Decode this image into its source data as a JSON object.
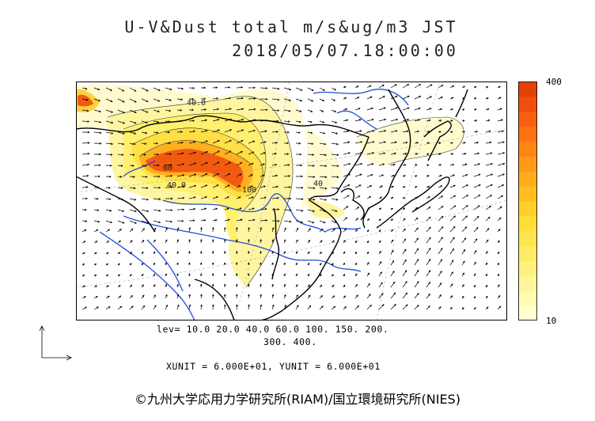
{
  "header": {
    "title_line1": "U-V&Dust total m/s&ug/m3 JST",
    "title_line2": "2018/05/07.18:00:00"
  },
  "colorbar": {
    "max_label": "400",
    "min_label": "10",
    "colors": [
      "#ffffd0",
      "#fffbb0",
      "#fff59a",
      "#fff080",
      "#ffeb66",
      "#ffe54d",
      "#ffdd3a",
      "#ffcf2a",
      "#ffc01f",
      "#ffad1a",
      "#ff9a18",
      "#ff8616",
      "#ff7214",
      "#f86010",
      "#ee500c",
      "#e2420a"
    ]
  },
  "contours": {
    "levels_line1": "lev= 10.0 20.0 40.0 60.0 100. 150. 200.",
    "levels_line2": "300. 400.",
    "map_labels": [
      "40.0",
      "60",
      "100",
      "40.0",
      "40"
    ]
  },
  "vectors": {
    "units_text": "XUNIT = 6.000E+01, YUNIT = 6.000E+01"
  },
  "credit": "©九州大学応用力学研究所(RIAM)/国立環境研究所(NIES)",
  "colors": {
    "coast": "#000000",
    "river": "#1f4fd8",
    "border": "#000000",
    "grid": "#999999"
  }
}
